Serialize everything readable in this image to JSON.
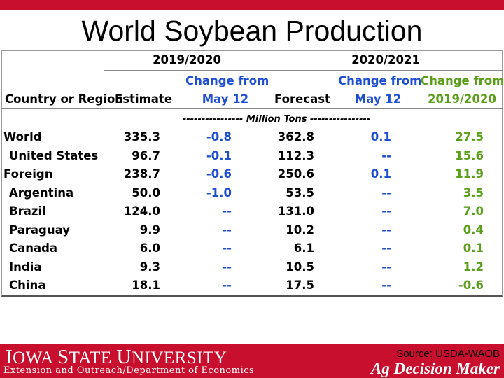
{
  "title": "World Soybean Production",
  "header": {
    "col_country": "Country or Region",
    "group_2019": "2019/2020",
    "group_2020": "2020/2021",
    "estimate": "Estimate",
    "change_may12_a_line1": "Change from",
    "change_may12_a_line2": "May 12",
    "forecast": "Forecast",
    "change_may12_b_line1": "Change from",
    "change_may12_b_line2": "May 12",
    "change_prev_line1": "Change from",
    "change_prev_line2": "2019/2020",
    "units": "---------------- Million Tons ----------------"
  },
  "rows": [
    {
      "name": "World",
      "est": "335.3",
      "chg1": "-0.8",
      "fc": "362.8",
      "chg2": "0.1",
      "chg3": "27.5"
    },
    {
      "name": "United States",
      "est": "96.7",
      "chg1": "-0.1",
      "fc": "112.3",
      "chg2": "--",
      "chg3": "15.6"
    },
    {
      "name": "Foreign",
      "est": "238.7",
      "chg1": "-0.6",
      "fc": "250.6",
      "chg2": "0.1",
      "chg3": "11.9"
    },
    {
      "name": "Argentina",
      "est": "50.0",
      "chg1": "-1.0",
      "fc": "53.5",
      "chg2": "--",
      "chg3": "3.5"
    },
    {
      "name": "Brazil",
      "est": "124.0",
      "chg1": "--",
      "fc": "131.0",
      "chg2": "--",
      "chg3": "7.0"
    },
    {
      "name": "Paraguay",
      "est": "9.9",
      "chg1": "--",
      "fc": "10.2",
      "chg2": "--",
      "chg3": "0.4"
    },
    {
      "name": "Canada",
      "est": "6.0",
      "chg1": "--",
      "fc": "6.1",
      "chg2": "--",
      "chg3": "0.1"
    },
    {
      "name": "India",
      "est": "9.3",
      "chg1": "--",
      "fc": "10.5",
      "chg2": "--",
      "chg3": "1.2"
    },
    {
      "name": "China",
      "est": "18.1",
      "chg1": "--",
      "fc": "17.5",
      "chg2": "--",
      "chg3": "-0.6"
    }
  ],
  "footer": {
    "university_first": "I",
    "university_rest": "OWA ",
    "university_s": "S",
    "university_tate": "TATE ",
    "university_u": "U",
    "university_niv": "NIVERSITY",
    "department": "Extension and Outreach/Department of Economics",
    "source": "Source: USDA-WAOB",
    "brand": "Ag Decision Maker"
  },
  "colors": {
    "brand_red": "#c8102e",
    "change_blue": "#1f4fd1",
    "change_green": "#5a9e1a"
  }
}
